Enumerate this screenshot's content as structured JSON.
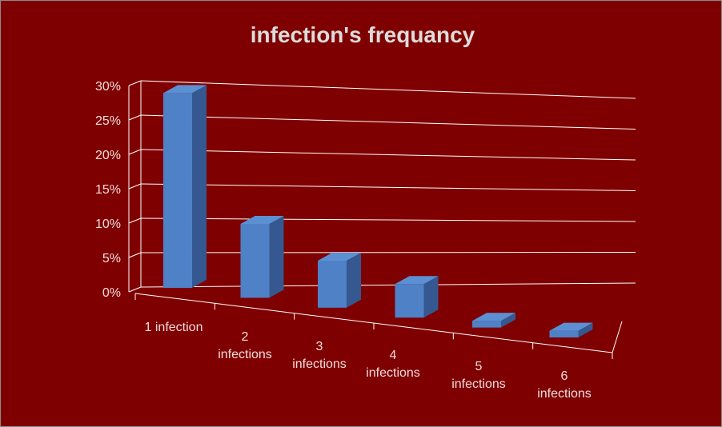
{
  "chart_data": {
    "type": "bar",
    "title": "infection's frequancy",
    "categories": [
      "1 infection",
      "2 infections",
      "3 infections",
      "4 infections",
      "5 infections",
      "6 infections"
    ],
    "category_lines": [
      [
        "1 infection"
      ],
      [
        "2",
        "infections"
      ],
      [
        "3",
        "infections"
      ],
      [
        "4",
        "infections"
      ],
      [
        "5",
        "infections"
      ],
      [
        "6",
        "infections"
      ]
    ],
    "values": [
      0.29,
      0.11,
      0.07,
      0.05,
      0.01,
      0.01
    ],
    "yticks": [
      "0%",
      "5%",
      "10%",
      "15%",
      "20%",
      "25%",
      "30%"
    ],
    "ylim": [
      0,
      0.3
    ],
    "grid": true,
    "projection": "3d",
    "colors": {
      "background": "#7f0000",
      "bar_front": "#4f81c7",
      "bar_side": "#34588f",
      "bar_top": "#5d8fd3",
      "grid": "#ffffff",
      "text": "#f2dcdc",
      "title": "#dcdcdc"
    }
  }
}
